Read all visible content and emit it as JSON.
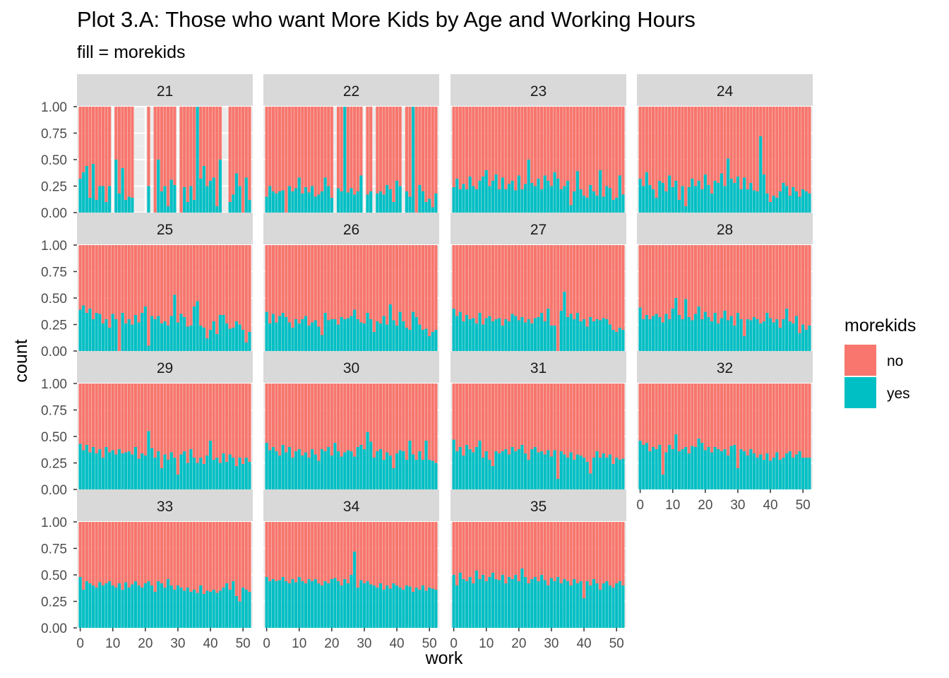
{
  "chart_data": {
    "type": "bar",
    "position": "fill",
    "title": "Plot 3.A: Those who want More Kids by Age and Working Hours",
    "subtitle": "fill = morekids",
    "xlabel": "work",
    "ylabel": "count",
    "xlim": [
      -1,
      53
    ],
    "ylim": [
      0,
      1
    ],
    "yticks": [
      "0.00",
      "0.25",
      "0.50",
      "0.75",
      "1.00"
    ],
    "xticks": [
      0,
      10,
      20,
      30,
      40,
      50
    ],
    "grid": true,
    "legend": {
      "title": "morekids",
      "placement": "right",
      "entries": [
        {
          "label": "no",
          "color": "#F8766D"
        },
        {
          "label": "yes",
          "color": "#00BFC4"
        }
      ]
    },
    "colors": {
      "no": "#F8766D",
      "yes": "#00BFC4",
      "panel": "#EBEBEB",
      "strip": "#D9D9D9",
      "grid_major": "#FFFFFF",
      "grid_minor": "#F2F2F2"
    },
    "x": [
      0,
      1,
      2,
      3,
      4,
      5,
      6,
      7,
      8,
      9,
      10,
      11,
      12,
      13,
      14,
      15,
      16,
      17,
      18,
      19,
      20,
      21,
      22,
      23,
      24,
      25,
      26,
      27,
      28,
      29,
      30,
      31,
      32,
      33,
      34,
      35,
      36,
      37,
      38,
      39,
      40,
      41,
      42,
      43,
      44,
      45,
      46,
      47,
      48,
      49,
      50,
      51,
      52
    ],
    "series_note_fill": "values are the proportion 'yes'; 'no' fills the remainder to 1.00; null = no observations at that work value",
    "panels": [
      {
        "label": "21",
        "yes": [
          0.32,
          0.38,
          0.44,
          0.14,
          0.46,
          0.12,
          0.25,
          0.25,
          0.1,
          0.25,
          null,
          0.5,
          0.18,
          0.42,
          0.12,
          0.15,
          0.14,
          null,
          null,
          null,
          null,
          0.25,
          null,
          0.0,
          0.5,
          0.2,
          0.25,
          0.06,
          0.31,
          0.26,
          null,
          0.0,
          0.24,
          0.1,
          0.25,
          0.12,
          1.0,
          0.32,
          0.44,
          0.25,
          0.3,
          0.33,
          0.06,
          0.5,
          null,
          null,
          0.1,
          0.17,
          0.37,
          0.25,
          0.0,
          0.33,
          0.12
        ]
      },
      {
        "label": "22",
        "yes": [
          0.15,
          0.25,
          0.2,
          0.18,
          0.2,
          0.21,
          0.0,
          0.25,
          0.2,
          0.23,
          0.33,
          0.18,
          0.24,
          0.19,
          0.25,
          0.15,
          0.17,
          0.2,
          0.33,
          0.25,
          0.14,
          null,
          0.23,
          0.2,
          1.0,
          0.19,
          0.23,
          0.17,
          0.2,
          0.35,
          null,
          0.17,
          0.2,
          null,
          0.18,
          0.2,
          0.17,
          0.26,
          0.22,
          0.1,
          0.3,
          0.25,
          null,
          0.2,
          0.15,
          1.0,
          0.0,
          0.26,
          0.2,
          0.1,
          0.13,
          0.05,
          0.18
        ]
      },
      {
        "label": "23",
        "yes": [
          0.24,
          0.32,
          0.22,
          0.27,
          0.22,
          0.34,
          0.25,
          0.22,
          0.3,
          0.34,
          0.4,
          0.25,
          0.3,
          0.36,
          0.22,
          0.33,
          0.22,
          0.27,
          0.3,
          0.21,
          0.35,
          0.22,
          0.27,
          0.5,
          0.28,
          0.25,
          0.32,
          0.22,
          0.35,
          0.3,
          0.25,
          0.38,
          0.32,
          0.22,
          0.25,
          0.3,
          0.07,
          0.2,
          0.39,
          0.22,
          0.16,
          0.14,
          0.26,
          0.2,
          0.16,
          0.4,
          0.15,
          0.25,
          0.23,
          0.12,
          0.14,
          0.35,
          0.17
        ]
      },
      {
        "label": "24",
        "yes": [
          0.32,
          0.25,
          0.38,
          0.26,
          0.22,
          0.14,
          0.3,
          0.28,
          0.2,
          0.35,
          0.24,
          0.3,
          0.12,
          0.25,
          0.06,
          0.24,
          0.32,
          0.25,
          0.3,
          0.22,
          0.36,
          0.26,
          0.18,
          0.3,
          0.28,
          0.37,
          0.25,
          0.51,
          0.32,
          0.28,
          0.34,
          0.22,
          0.33,
          0.22,
          0.28,
          0.21,
          0.2,
          0.72,
          0.36,
          0.18,
          0.1,
          0.16,
          0.14,
          0.2,
          0.28,
          0.25,
          0.16,
          0.24,
          0.2,
          0.15,
          0.22,
          0.2,
          0.18
        ]
      },
      {
        "label": "25",
        "yes": [
          0.39,
          0.43,
          0.36,
          0.4,
          0.3,
          0.36,
          0.35,
          0.26,
          0.3,
          0.22,
          0.35,
          0.3,
          0.0,
          0.36,
          0.26,
          0.3,
          0.25,
          0.34,
          0.27,
          0.36,
          0.42,
          0.05,
          0.33,
          0.3,
          0.33,
          0.26,
          0.28,
          0.24,
          0.33,
          0.53,
          0.27,
          0.35,
          0.32,
          0.23,
          0.24,
          0.42,
          0.47,
          0.24,
          0.22,
          0.12,
          0.2,
          0.28,
          0.16,
          0.34,
          0.34,
          0.26,
          0.21,
          0.22,
          0.28,
          0.25,
          0.2,
          0.08,
          0.18
        ]
      },
      {
        "label": "26",
        "yes": [
          0.37,
          0.26,
          0.35,
          0.27,
          0.33,
          0.36,
          0.32,
          0.27,
          0.22,
          0.3,
          0.26,
          0.3,
          0.33,
          0.24,
          0.27,
          0.29,
          0.23,
          0.15,
          0.36,
          0.29,
          0.3,
          0.3,
          0.25,
          0.32,
          0.3,
          0.31,
          0.33,
          0.39,
          0.3,
          0.27,
          0.26,
          0.36,
          0.3,
          0.18,
          0.28,
          0.26,
          0.33,
          0.25,
          0.44,
          0.29,
          0.24,
          0.37,
          0.28,
          0.22,
          0.2,
          0.37,
          0.32,
          0.25,
          0.2,
          0.21,
          0.14,
          0.18,
          0.2
        ]
      },
      {
        "label": "27",
        "yes": [
          0.4,
          0.33,
          0.37,
          0.28,
          0.34,
          0.3,
          0.31,
          0.26,
          0.36,
          0.25,
          0.31,
          0.33,
          0.28,
          0.3,
          0.31,
          0.24,
          0.3,
          0.28,
          0.35,
          0.33,
          0.29,
          0.32,
          0.27,
          0.3,
          0.26,
          0.31,
          0.32,
          0.36,
          0.28,
          0.4,
          0.24,
          0.24,
          0.0,
          0.38,
          0.56,
          0.32,
          0.35,
          0.3,
          0.36,
          0.28,
          0.3,
          0.23,
          0.32,
          0.28,
          0.3,
          0.29,
          0.31,
          0.3,
          0.25,
          0.2,
          0.18,
          0.22,
          0.2
        ]
      },
      {
        "label": "28",
        "yes": [
          0.41,
          0.3,
          0.34,
          0.3,
          0.33,
          0.35,
          0.32,
          0.27,
          0.35,
          0.3,
          0.4,
          0.5,
          0.34,
          0.3,
          0.49,
          0.32,
          0.29,
          0.35,
          0.42,
          0.3,
          0.37,
          0.32,
          0.28,
          0.36,
          0.26,
          0.31,
          0.38,
          0.29,
          0.33,
          0.24,
          0.36,
          0.3,
          0.14,
          0.3,
          0.29,
          0.32,
          0.3,
          0.26,
          0.28,
          0.36,
          0.31,
          0.27,
          0.3,
          0.22,
          0.3,
          0.4,
          0.28,
          0.26,
          0.33,
          0.17,
          0.25,
          0.2,
          0.24
        ]
      },
      {
        "label": "29",
        "yes": [
          0.43,
          0.37,
          0.42,
          0.35,
          0.4,
          0.34,
          0.38,
          0.3,
          0.4,
          0.35,
          0.37,
          0.33,
          0.38,
          0.34,
          0.35,
          0.36,
          0.33,
          0.4,
          0.29,
          0.34,
          0.32,
          0.55,
          0.39,
          0.3,
          0.36,
          0.2,
          0.33,
          0.28,
          0.35,
          0.3,
          0.14,
          0.33,
          0.36,
          0.25,
          0.38,
          0.3,
          0.25,
          0.3,
          0.24,
          0.32,
          0.46,
          0.28,
          0.3,
          0.25,
          0.34,
          0.26,
          0.33,
          0.3,
          0.22,
          0.3,
          0.24,
          0.3,
          0.26
        ]
      },
      {
        "label": "30",
        "yes": [
          0.44,
          0.37,
          0.4,
          0.36,
          0.32,
          0.42,
          0.35,
          0.4,
          0.3,
          0.36,
          0.38,
          0.32,
          0.35,
          0.3,
          0.38,
          0.33,
          0.27,
          0.38,
          0.36,
          0.4,
          0.32,
          0.44,
          0.36,
          0.31,
          0.35,
          0.37,
          0.36,
          0.31,
          0.4,
          0.42,
          0.38,
          0.54,
          0.45,
          0.3,
          0.36,
          0.38,
          0.28,
          0.35,
          0.32,
          0.2,
          0.34,
          0.37,
          0.36,
          0.28,
          0.46,
          0.33,
          0.28,
          0.36,
          0.28,
          0.46,
          0.28,
          0.27,
          0.25
        ]
      },
      {
        "label": "31",
        "yes": [
          0.47,
          0.36,
          0.4,
          0.32,
          0.42,
          0.38,
          0.35,
          0.4,
          0.46,
          0.3,
          0.36,
          0.28,
          0.22,
          0.36,
          0.34,
          0.36,
          0.38,
          0.33,
          0.4,
          0.36,
          0.38,
          0.42,
          0.34,
          0.28,
          0.38,
          0.4,
          0.35,
          0.36,
          0.33,
          0.37,
          0.31,
          0.37,
          0.1,
          0.36,
          0.33,
          0.3,
          0.35,
          0.28,
          0.33,
          0.32,
          0.3,
          0.26,
          0.15,
          0.3,
          0.36,
          0.3,
          0.34,
          0.3,
          0.33,
          0.24,
          0.3,
          0.28,
          0.29
        ]
      },
      {
        "label": "32",
        "yes": [
          0.46,
          0.42,
          0.44,
          0.36,
          0.4,
          0.38,
          0.42,
          0.14,
          0.35,
          0.42,
          0.38,
          0.52,
          0.36,
          0.38,
          0.4,
          0.34,
          0.41,
          0.4,
          0.48,
          0.44,
          0.37,
          0.4,
          0.35,
          0.4,
          0.38,
          0.36,
          0.38,
          0.32,
          0.41,
          0.42,
          0.2,
          0.38,
          0.36,
          0.32,
          0.38,
          0.34,
          0.3,
          0.33,
          0.28,
          0.34,
          0.27,
          0.3,
          0.35,
          0.28,
          0.3,
          0.34,
          0.36,
          0.3,
          0.33,
          0.36,
          0.3,
          0.3,
          0.3
        ]
      },
      {
        "label": "33",
        "yes": [
          0.48,
          0.36,
          0.44,
          0.42,
          0.4,
          0.38,
          0.43,
          0.4,
          0.42,
          0.44,
          0.4,
          0.38,
          0.42,
          0.36,
          0.43,
          0.38,
          0.41,
          0.44,
          0.4,
          0.38,
          0.42,
          0.44,
          0.4,
          0.34,
          0.44,
          0.42,
          0.38,
          0.46,
          0.4,
          0.36,
          0.4,
          0.38,
          0.35,
          0.38,
          0.34,
          0.36,
          0.33,
          0.4,
          0.32,
          0.35,
          0.34,
          0.36,
          0.33,
          0.35,
          0.38,
          0.42,
          0.36,
          0.44,
          0.3,
          0.25,
          0.38,
          0.36,
          0.34
        ]
      },
      {
        "label": "34",
        "yes": [
          0.48,
          0.44,
          0.46,
          0.44,
          0.45,
          0.48,
          0.44,
          0.42,
          0.46,
          0.43,
          0.48,
          0.44,
          0.42,
          0.46,
          0.44,
          0.46,
          0.42,
          0.4,
          0.44,
          0.42,
          0.46,
          0.47,
          0.44,
          0.4,
          0.46,
          0.42,
          0.5,
          0.72,
          0.38,
          0.45,
          0.42,
          0.44,
          0.41,
          0.4,
          0.38,
          0.42,
          0.36,
          0.4,
          0.37,
          0.42,
          0.4,
          0.38,
          0.36,
          0.4,
          0.39,
          0.34,
          0.38,
          0.36,
          0.4,
          0.35,
          0.38,
          0.37,
          0.36
        ]
      },
      {
        "label": "35",
        "yes": [
          0.5,
          0.4,
          0.52,
          0.46,
          0.44,
          0.48,
          0.42,
          0.54,
          0.46,
          0.5,
          0.44,
          0.48,
          0.52,
          0.46,
          0.45,
          0.5,
          0.42,
          0.48,
          0.46,
          0.5,
          0.44,
          0.56,
          0.48,
          0.42,
          0.46,
          0.48,
          0.44,
          0.5,
          0.45,
          0.4,
          0.47,
          0.44,
          0.48,
          0.42,
          0.46,
          0.44,
          0.4,
          0.46,
          0.42,
          0.44,
          0.28,
          0.44,
          0.4,
          0.46,
          0.42,
          0.36,
          0.42,
          0.44,
          0.4,
          0.38,
          0.42,
          0.44,
          0.4
        ]
      }
    ]
  }
}
